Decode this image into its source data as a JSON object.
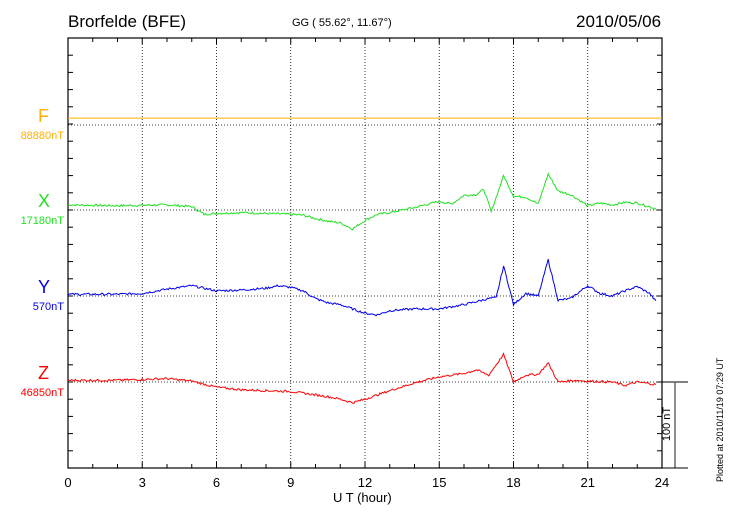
{
  "chart_data": {
    "type": "line",
    "title": "Brorfelde (BFE)",
    "subtitle": "GG ( 55.62°,  11.67°)",
    "date": "2010/05/06",
    "xlabel": "U T (hour)",
    "xlim": [
      0,
      24
    ],
    "x_ticks": [
      "0",
      "3",
      "6",
      "9",
      "12",
      "15",
      "18",
      "21",
      "24"
    ],
    "scale_bar_label": "100 nT",
    "footer": "Plotted at 2010/11/19 07:29 UT",
    "grid": true,
    "series": [
      {
        "name": "F",
        "baseline_label": "88880nT",
        "color": "#ffb000",
        "x": [
          0,
          24
        ],
        "y_offset_nT": [
          8,
          8
        ]
      },
      {
        "name": "X",
        "baseline_label": "17180nT",
        "color": "#22e022",
        "x": [
          0,
          2,
          4,
          5,
          5.5,
          6,
          7,
          8,
          9,
          9.5,
          10,
          10.5,
          11,
          11.5,
          12,
          12.5,
          13,
          14,
          15,
          15.5,
          16,
          16.5,
          16.8,
          17.1,
          17.6,
          18,
          18.5,
          19,
          19.4,
          19.8,
          20.3,
          21,
          21.5,
          22,
          22.5,
          23,
          23.7
        ],
        "y_offset_nT": [
          6,
          5,
          6,
          4,
          -5,
          -4,
          -3,
          -4,
          -5,
          -6,
          -10,
          -13,
          -15,
          -22,
          -12,
          -5,
          -3,
          3,
          10,
          7,
          17,
          18,
          24,
          -2,
          40,
          16,
          15,
          7,
          42,
          22,
          18,
          5,
          8,
          6,
          9,
          8,
          2
        ]
      },
      {
        "name": "Y",
        "baseline_label": "570nT",
        "color": "#0000ee",
        "x": [
          0,
          2,
          3,
          4,
          5,
          6,
          7,
          8,
          8.5,
          9,
          9.5,
          10,
          10.5,
          11,
          12,
          12.5,
          13,
          14,
          15,
          16,
          17,
          17.3,
          17.6,
          18,
          18.5,
          19,
          19.4,
          19.8,
          20.3,
          21,
          21.5,
          22,
          22.5,
          23,
          23.5,
          23.8
        ],
        "y_offset_nT": [
          2,
          2,
          3,
          8,
          12,
          6,
          7,
          9,
          12,
          10,
          6,
          -3,
          -8,
          -10,
          -20,
          -22,
          -17,
          -15,
          -15,
          -10,
          -3,
          -2,
          35,
          -10,
          3,
          0,
          42,
          -5,
          -3,
          12,
          3,
          0,
          6,
          11,
          3,
          -8
        ]
      },
      {
        "name": "Z",
        "baseline_label": "46850nT",
        "color": "#ff0000",
        "x": [
          0,
          2,
          4,
          5,
          6,
          7,
          8,
          9,
          10,
          10.5,
          11,
          11.5,
          12,
          13,
          14,
          15,
          16,
          16.5,
          17,
          17.6,
          18,
          18.5,
          19,
          19.4,
          19.8,
          20.5,
          21,
          22,
          22.5,
          23,
          23.8
        ],
        "y_offset_nT": [
          2,
          2,
          4,
          1,
          -6,
          -9,
          -10,
          -11,
          -15,
          -17,
          -20,
          -24,
          -20,
          -10,
          -1,
          6,
          10,
          14,
          8,
          32,
          0,
          8,
          9,
          22,
          0,
          2,
          1,
          0,
          -4,
          0,
          -3
        ]
      }
    ]
  }
}
